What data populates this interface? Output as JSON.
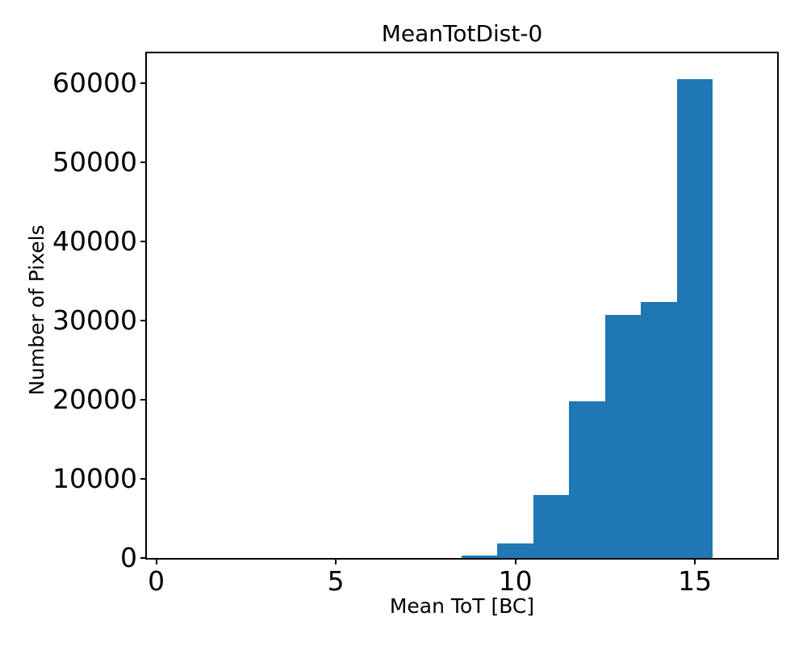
{
  "figure": {
    "background_color": "#ffffff",
    "text_color": "#000000",
    "spine_color": "#000000"
  },
  "chart_data": {
    "type": "bar",
    "title": "MeanTotDist-0",
    "xlabel": "Mean ToT [BC]",
    "ylabel": "Number of Pixels",
    "bar_color": "#1f77b4",
    "bin_edges": [
      8.5,
      9.5,
      10.5,
      11.5,
      12.5,
      13.5,
      14.5,
      15.5
    ],
    "values": [
      300,
      1850,
      8000,
      19800,
      30750,
      32350,
      60550
    ],
    "xlim": [
      -0.26,
      17.29
    ],
    "ylim": [
      0,
      63770
    ],
    "x_ticks": [
      0,
      5,
      10,
      15
    ],
    "y_ticks": [
      0,
      10000,
      20000,
      30000,
      40000,
      50000,
      60000
    ],
    "grid": false,
    "legend": null
  }
}
